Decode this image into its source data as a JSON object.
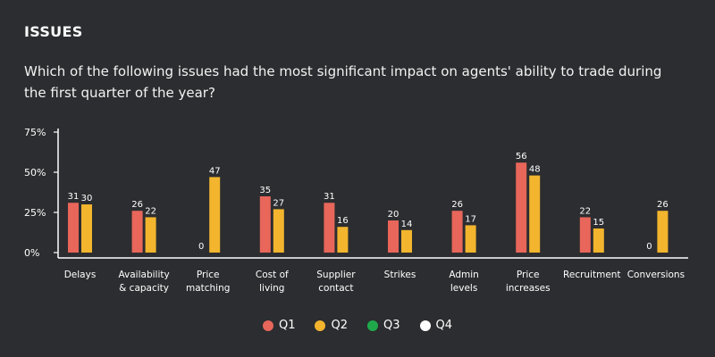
{
  "header": {
    "section_label": "ISSUES",
    "question": "Which of the following issues had the most significant impact on agents' ability to trade during the first quarter of the year?"
  },
  "colors": {
    "background": "#2c2d30",
    "Q1": "#e8665a",
    "Q2": "#f2b52d",
    "Q3": "#1fa94b",
    "Q4": "#ffffff"
  },
  "chart_data": {
    "type": "bar",
    "categories": [
      [
        "Delays"
      ],
      [
        "Availability",
        "& capacity"
      ],
      [
        "Price",
        "matching"
      ],
      [
        "Cost of",
        "living"
      ],
      [
        "Supplier",
        "contact"
      ],
      [
        "Strikes"
      ],
      [
        "Admin",
        "levels"
      ],
      [
        "Price",
        "increases"
      ],
      [
        "Recruitment"
      ],
      [
        "Conversions"
      ]
    ],
    "series": [
      {
        "name": "Q1",
        "color": "#e8665a",
        "values": [
          31,
          26,
          0,
          35,
          31,
          20,
          26,
          56,
          22,
          0
        ]
      },
      {
        "name": "Q2",
        "color": "#f2b52d",
        "values": [
          30,
          22,
          47,
          27,
          16,
          14,
          17,
          48,
          15,
          26
        ]
      }
    ],
    "ylim": [
      0,
      75
    ],
    "yticks": [
      "0%",
      "25%",
      "50%",
      "75%"
    ],
    "ytick_values": [
      0,
      25,
      50,
      75
    ],
    "grid": false,
    "legend": {
      "placement": "bottom-center",
      "items": [
        {
          "name": "Q1",
          "color": "#e8665a"
        },
        {
          "name": "Q2",
          "color": "#f2b52d"
        },
        {
          "name": "Q3",
          "color": "#1fa94b"
        },
        {
          "name": "Q4",
          "color": "#ffffff"
        }
      ]
    }
  }
}
